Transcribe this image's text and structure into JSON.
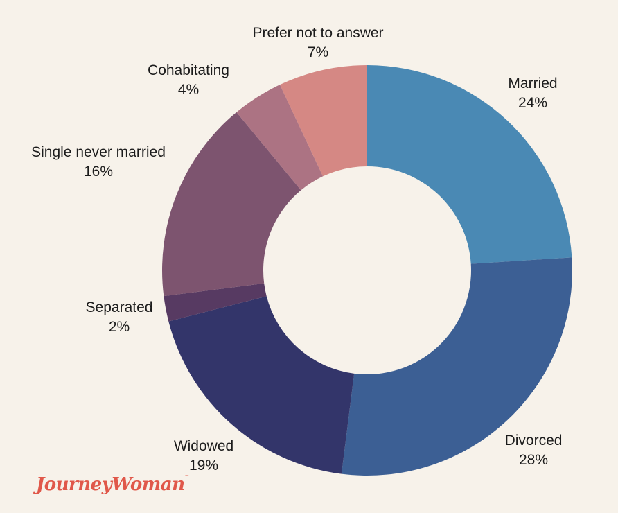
{
  "chart_data": {
    "type": "pie",
    "donut": true,
    "start_angle_deg": 0,
    "direction": "clockwise",
    "slices": [
      {
        "label": "Married",
        "value": 24,
        "display": "24%",
        "color": "#4a89b4"
      },
      {
        "label": "Divorced",
        "value": 28,
        "display": "28%",
        "color": "#3c5f94"
      },
      {
        "label": "Widowed",
        "value": 19,
        "display": "19%",
        "color": "#33356a"
      },
      {
        "label": "Separated",
        "value": 2,
        "display": "2%",
        "color": "#573a62"
      },
      {
        "label": "Single never married",
        "value": 16,
        "display": "16%",
        "color": "#7d546f"
      },
      {
        "label": "Cohabitating",
        "value": 4,
        "display": "4%",
        "color": "#ac7383"
      },
      {
        "label": "Prefer not to answer",
        "value": 7,
        "display": "7%",
        "color": "#d58884"
      }
    ]
  },
  "brand": {
    "logo_text": "JourneyWoman",
    "mark": "™",
    "color": "#e0584a"
  },
  "background": "#f7f2ea"
}
